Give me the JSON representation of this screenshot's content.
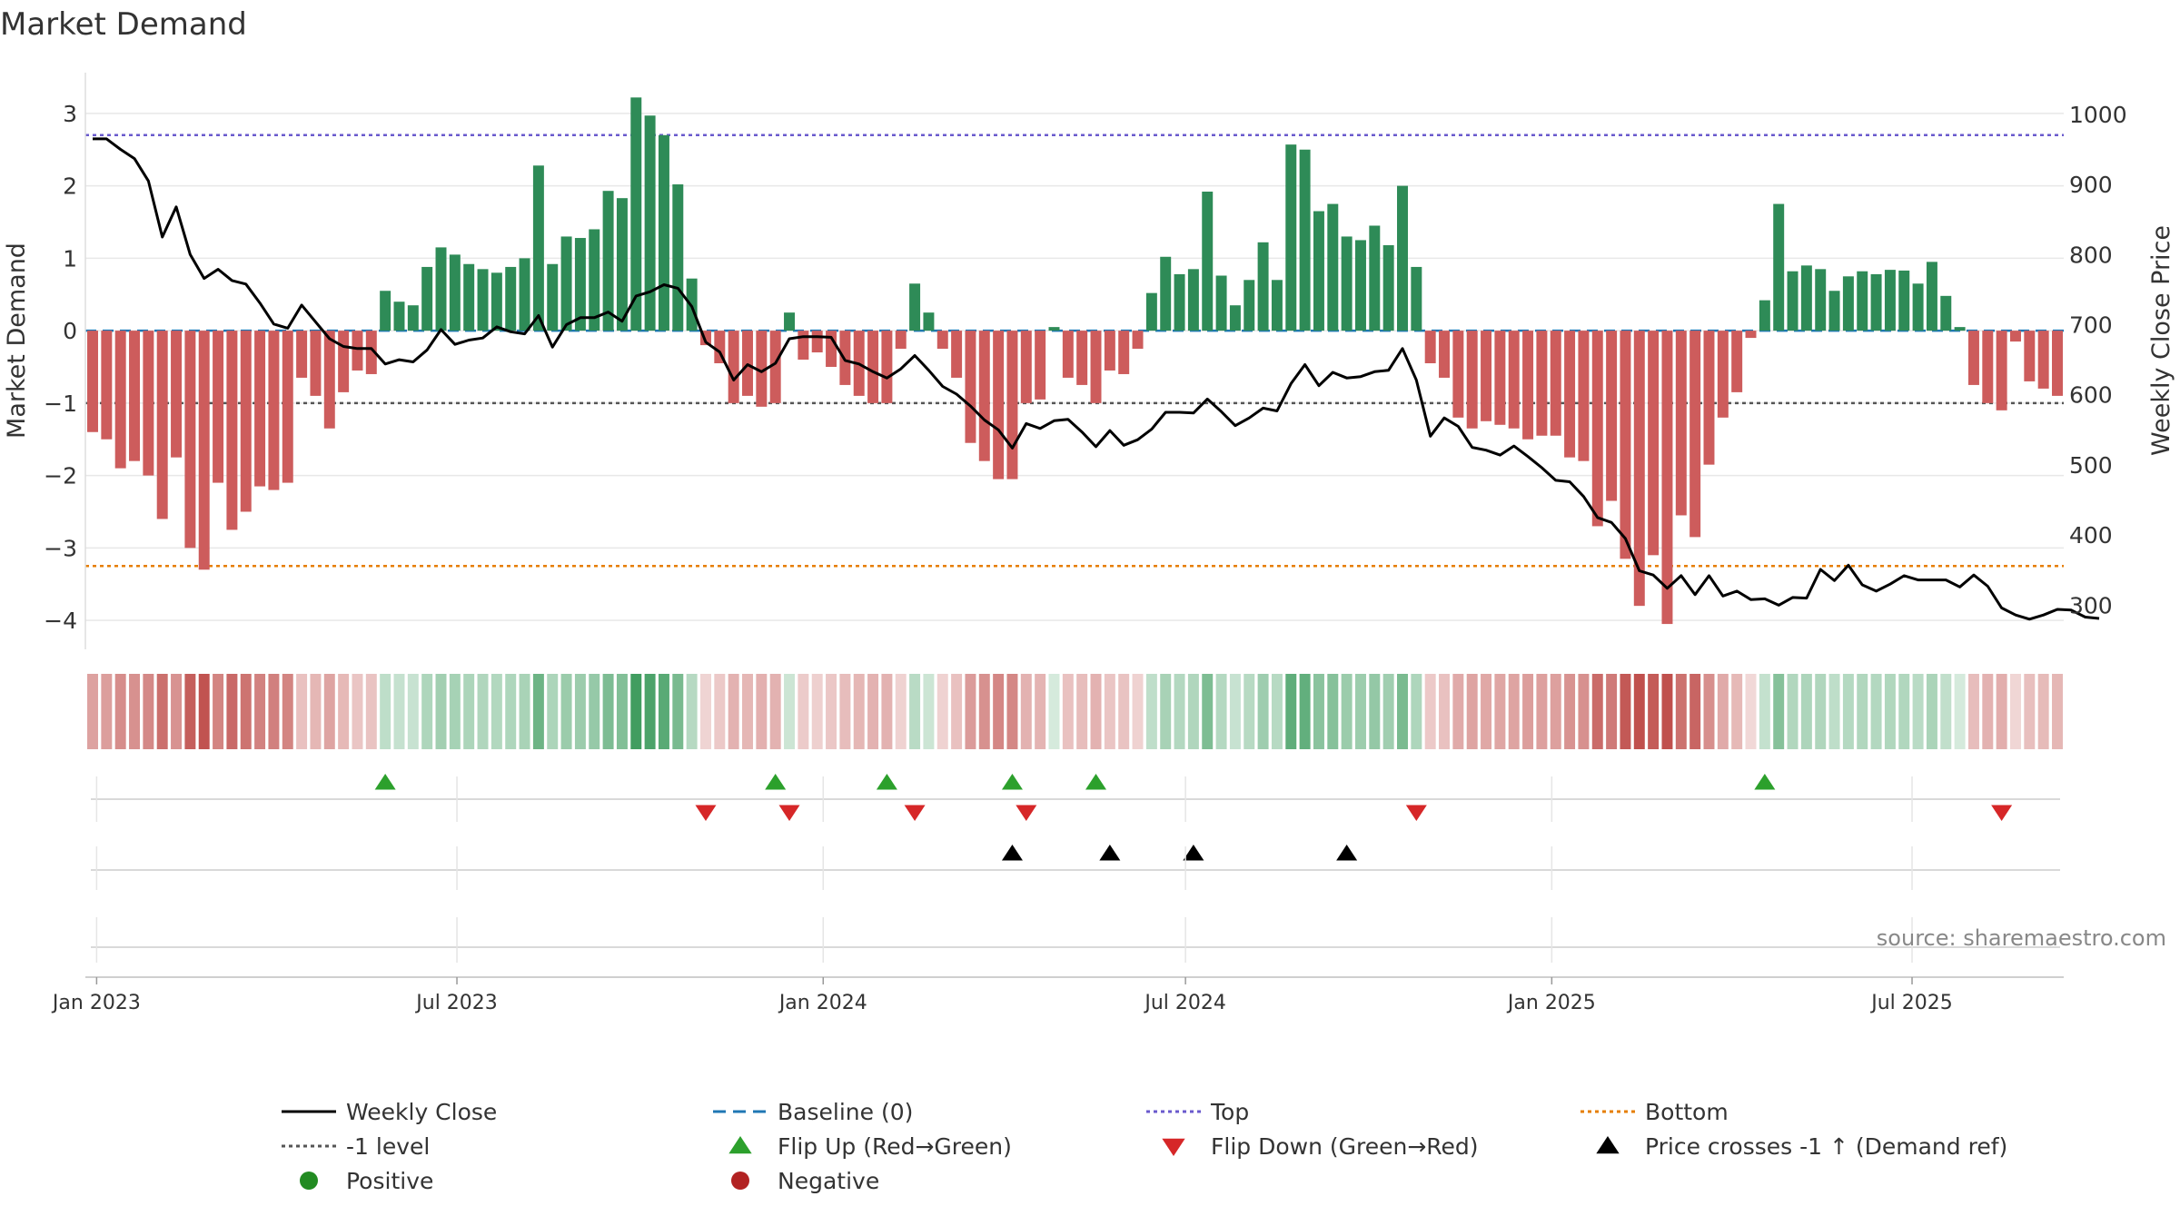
{
  "chart_data": {
    "type": "bar",
    "title": "Market Demand",
    "ylabel": "Market Demand",
    "y2label": "Weekly Close Price",
    "ylim": [
      -4.4,
      3.5
    ],
    "y2lim": [
      237,
      1053
    ],
    "yticks": [
      3,
      2,
      1,
      0,
      -1,
      -2,
      -3,
      -4
    ],
    "y2ticks": [
      1000,
      900,
      800,
      700,
      600,
      500,
      400,
      300
    ],
    "y2tick_labels": [
      "1000",
      "900",
      "800",
      "700",
      "600",
      "500",
      "400",
      "300"
    ],
    "ytick_labels": [
      "3",
      "2",
      "1",
      "0",
      "−1",
      "−2",
      "−3",
      "−4"
    ],
    "x_start": "2022-12-30",
    "x_interval_days": 7,
    "xticks": [
      {
        "date": "2023-01-01",
        "label": "Jan 2023"
      },
      {
        "date": "2023-07-01",
        "label": "Jul 2023"
      },
      {
        "date": "2024-01-01",
        "label": "Jan 2024"
      },
      {
        "date": "2024-07-01",
        "label": "Jul 2024"
      },
      {
        "date": "2025-01-01",
        "label": "Jan 2025"
      },
      {
        "date": "2025-07-01",
        "label": "Jul 2025"
      }
    ],
    "series": [
      {
        "name": "Market Demand",
        "kind": "bar",
        "values": [
          -1.4,
          -1.5,
          -1.9,
          -1.8,
          -2.0,
          -2.6,
          -1.75,
          -3.0,
          -3.3,
          -2.1,
          -2.75,
          -2.5,
          -2.15,
          -2.2,
          -2.1,
          -0.65,
          -0.9,
          -1.35,
          -0.85,
          -0.55,
          -0.6,
          0.55,
          0.4,
          0.35,
          0.88,
          1.15,
          1.05,
          0.92,
          0.85,
          0.8,
          0.88,
          1.0,
          2.28,
          0.92,
          1.3,
          1.28,
          1.4,
          1.93,
          1.83,
          3.22,
          2.97,
          2.7,
          2.02,
          0.72,
          -0.2,
          -0.45,
          -1.0,
          -0.9,
          -1.05,
          -1.0,
          0.25,
          -0.4,
          -0.3,
          -0.5,
          -0.75,
          -0.9,
          -1.0,
          -1.0,
          -0.25,
          0.65,
          0.25,
          -0.25,
          -0.65,
          -1.55,
          -1.8,
          -2.05,
          -2.05,
          -1.0,
          -0.95,
          0.05,
          -0.65,
          -0.75,
          -1.0,
          -0.55,
          -0.6,
          -0.25,
          0.52,
          1.02,
          0.78,
          0.85,
          1.92,
          0.76,
          0.35,
          0.7,
          1.22,
          0.7,
          2.57,
          2.5,
          1.65,
          1.75,
          1.3,
          1.25,
          1.45,
          1.18,
          2.0,
          0.88,
          -0.45,
          -0.65,
          -1.2,
          -1.35,
          -1.25,
          -1.3,
          -1.35,
          -1.5,
          -1.45,
          -1.45,
          -1.75,
          -1.8,
          -2.7,
          -2.35,
          -3.15,
          -3.8,
          -3.1,
          -4.05,
          -2.55,
          -2.85,
          -1.85,
          -1.2,
          -0.85,
          -0.1,
          0.42,
          1.75,
          0.82,
          0.9,
          0.85,
          0.55,
          0.75,
          0.82,
          0.78,
          0.84,
          0.83,
          0.65,
          0.95,
          0.48,
          0.05,
          -0.75,
          -1.0,
          -1.1,
          -0.15,
          -0.7,
          -0.8,
          -0.9
        ],
        "positive_color": "#2e8b57",
        "negative_color": "#cd5c5c"
      },
      {
        "name": "Weekly Close",
        "kind": "line",
        "axis": "right",
        "color": "#000000",
        "values": [
          965,
          965,
          950,
          937,
          905,
          825,
          868,
          800,
          766,
          779,
          763,
          758,
          731,
          701,
          695,
          728,
          704,
          680,
          669,
          666,
          666,
          644,
          650,
          647,
          664,
          693,
          672,
          678,
          681,
          697,
          690,
          687,
          713,
          668,
          700,
          710,
          710,
          718,
          705,
          741,
          747,
          757,
          752,
          726,
          675,
          661,
          621,
          643,
          633,
          645,
          680,
          683,
          683,
          682,
          649,
          644,
          633,
          624,
          637,
          656,
          635,
          612,
          601,
          584,
          564,
          550,
          524,
          559,
          552,
          563,
          565,
          547,
          526,
          549,
          528,
          536,
          551,
          575,
          575,
          574,
          594,
          576,
          556,
          567,
          581,
          577,
          616,
          643,
          613,
          632,
          624,
          626,
          633,
          635,
          666,
          621,
          541,
          567,
          555,
          525,
          521,
          514,
          527,
          512,
          496,
          478,
          476,
          455,
          425,
          418,
          395,
          349,
          343,
          324,
          342,
          315,
          342,
          313,
          320,
          308,
          309,
          300,
          311,
          310,
          351,
          335,
          357,
          329,
          320,
          330,
          342,
          336,
          336,
          336,
          326,
          343,
          327,
          296,
          286,
          280,
          286,
          294,
          293,
          283,
          281
        ]
      }
    ],
    "reference_lines": [
      {
        "name": "Baseline (0)",
        "value": 0,
        "color": "#1f77b4",
        "style": "dashed"
      },
      {
        "name": "Top",
        "value": 2.7,
        "color": "#6a5acd",
        "style": "dotted"
      },
      {
        "name": "Bottom",
        "value": -3.25,
        "color": "#e67e00",
        "style": "dotted"
      },
      {
        "name": "-1 level",
        "value": -1,
        "color": "#555555",
        "style": "dotted"
      }
    ],
    "flip_up": [
      "2023-05-26",
      "2023-12-08",
      "2024-02-02",
      "2024-04-05",
      "2024-05-17",
      "2025-04-18"
    ],
    "flip_down": [
      "2023-11-03",
      "2023-12-15",
      "2024-02-16",
      "2024-04-12",
      "2024-10-25",
      "2025-08-15"
    ],
    "price_crosses": [
      "2024-04-05",
      "2024-05-24",
      "2024-07-05",
      "2024-09-20"
    ],
    "annotation": "source: sharemaestro.com",
    "legend_position": "bottom",
    "legend": [
      {
        "label": "Weekly Close",
        "symbol": "line",
        "color": "#000000"
      },
      {
        "label": "Baseline (0)",
        "symbol": "dash",
        "color": "#1f77b4"
      },
      {
        "label": "Top",
        "symbol": "dot",
        "color": "#6a5acd"
      },
      {
        "label": "Bottom",
        "symbol": "dot",
        "color": "#e67e00"
      },
      {
        "label": "-1 level",
        "symbol": "dot",
        "color": "#555555"
      },
      {
        "label": "Flip Up (Red→Green)",
        "symbol": "tri-up",
        "color": "#2ca02c"
      },
      {
        "label": "Flip Down (Green→Red)",
        "symbol": "tri-down",
        "color": "#d62728"
      },
      {
        "label": "Price crosses -1 ↑ (Demand ref)",
        "symbol": "tri-up",
        "color": "#000000"
      },
      {
        "label": "Positive",
        "symbol": "circle",
        "color": "#228b22"
      },
      {
        "label": "Negative",
        "symbol": "circle",
        "color": "#b22222"
      }
    ]
  }
}
